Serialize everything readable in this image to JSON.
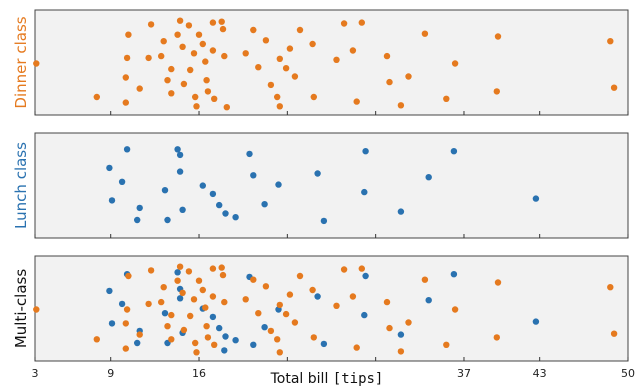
{
  "chart_data": {
    "type": "scatter",
    "xlabel_prefix": "Total bill ",
    "xlabel_code": "[tips]",
    "xlim": [
      3,
      50
    ],
    "xticks": [
      3,
      9,
      16,
      23,
      30,
      37,
      43,
      50
    ],
    "xtick_labels": [
      "3",
      "9",
      "16",
      "",
      "",
      "37",
      "43",
      "50"
    ],
    "grid": false,
    "legend": "none",
    "colors": {
      "dinner": "#e57a1f",
      "lunch": "#2a72b0"
    },
    "panels": [
      {
        "label": "Dinner class",
        "label_color": "#e57a1f",
        "series": [
          {
            "name": "Dinner",
            "color": "#e57a1f",
            "points": [
              [
                3.1,
                0.5
              ],
              [
                7.9,
                0.14
              ],
              [
                10.4,
                0.81
              ],
              [
                10.3,
                0.56
              ],
              [
                10.2,
                0.35
              ],
              [
                10.2,
                0.08
              ],
              [
                11.3,
                0.23
              ],
              [
                12.0,
                0.56
              ],
              [
                12.2,
                0.92
              ],
              [
                13.0,
                0.58
              ],
              [
                13.2,
                0.74
              ],
              [
                13.5,
                0.32
              ],
              [
                13.8,
                0.44
              ],
              [
                13.8,
                0.18
              ],
              [
                14.3,
                0.81
              ],
              [
                14.5,
                0.96
              ],
              [
                14.7,
                0.68
              ],
              [
                14.8,
                0.28
              ],
              [
                15.2,
                0.91
              ],
              [
                15.3,
                0.43
              ],
              [
                15.6,
                0.61
              ],
              [
                15.7,
                0.14
              ],
              [
                15.8,
                0.04
              ],
              [
                16.0,
                0.81
              ],
              [
                16.3,
                0.71
              ],
              [
                16.5,
                0.52
              ],
              [
                16.6,
                0.32
              ],
              [
                16.7,
                0.2
              ],
              [
                17.1,
                0.94
              ],
              [
                17.1,
                0.64
              ],
              [
                17.2,
                0.12
              ],
              [
                17.8,
                0.95
              ],
              [
                17.9,
                0.87
              ],
              [
                18.0,
                0.58
              ],
              [
                18.2,
                0.03
              ],
              [
                19.7,
                0.61
              ],
              [
                20.3,
                0.86
              ],
              [
                20.7,
                0.46
              ],
              [
                21.3,
                0.75
              ],
              [
                21.7,
                0.27
              ],
              [
                22.2,
                0.14
              ],
              [
                22.4,
                0.04
              ],
              [
                22.4,
                0.55
              ],
              [
                22.9,
                0.45
              ],
              [
                23.2,
                0.66
              ],
              [
                23.6,
                0.36
              ],
              [
                24.0,
                0.86
              ],
              [
                25.0,
                0.71
              ],
              [
                25.1,
                0.14
              ],
              [
                26.9,
                0.54
              ],
              [
                27.5,
                0.93
              ],
              [
                28.2,
                0.64
              ],
              [
                28.5,
                0.09
              ],
              [
                28.9,
                0.94
              ],
              [
                30.9,
                0.58
              ],
              [
                31.1,
                0.3
              ],
              [
                32.0,
                0.05
              ],
              [
                32.6,
                0.36
              ],
              [
                33.9,
                0.82
              ],
              [
                35.6,
                0.12
              ],
              [
                36.3,
                0.5
              ],
              [
                39.7,
                0.79
              ],
              [
                39.6,
                0.2
              ],
              [
                48.6,
                0.74
              ],
              [
                48.9,
                0.24
              ]
            ]
          }
        ]
      },
      {
        "label": "Lunch class",
        "label_color": "#2a72b0",
        "series": [
          {
            "name": "Lunch",
            "color": "#2a72b0",
            "points": [
              [
                10.3,
                0.9
              ],
              [
                8.9,
                0.7
              ],
              [
                9.1,
                0.35
              ],
              [
                9.9,
                0.55
              ],
              [
                11.3,
                0.27
              ],
              [
                11.1,
                0.14
              ],
              [
                13.3,
                0.46
              ],
              [
                13.5,
                0.14
              ],
              [
                14.3,
                0.9
              ],
              [
                14.5,
                0.84
              ],
              [
                14.5,
                0.66
              ],
              [
                14.7,
                0.25
              ],
              [
                16.3,
                0.51
              ],
              [
                17.1,
                0.42
              ],
              [
                17.6,
                0.3
              ],
              [
                18.1,
                0.21
              ],
              [
                18.9,
                0.17
              ],
              [
                20.0,
                0.85
              ],
              [
                20.3,
                0.62
              ],
              [
                21.2,
                0.31
              ],
              [
                22.3,
                0.52
              ],
              [
                25.4,
                0.64
              ],
              [
                25.9,
                0.13
              ],
              [
                29.2,
                0.88
              ],
              [
                29.1,
                0.44
              ],
              [
                32.0,
                0.23
              ],
              [
                34.2,
                0.6
              ],
              [
                36.2,
                0.88
              ],
              [
                42.7,
                0.37
              ]
            ]
          }
        ]
      },
      {
        "label": "Multi-class",
        "label_color": "#111111",
        "series": [
          {
            "name": "Lunch",
            "color": "#2a72b0",
            "points": [
              [
                10.3,
                0.88
              ],
              [
                8.9,
                0.7
              ],
              [
                9.1,
                0.35
              ],
              [
                9.9,
                0.56
              ],
              [
                11.3,
                0.27
              ],
              [
                11.1,
                0.14
              ],
              [
                13.3,
                0.46
              ],
              [
                13.5,
                0.14
              ],
              [
                14.3,
                0.9
              ],
              [
                14.5,
                0.72
              ],
              [
                14.5,
                0.62
              ],
              [
                14.7,
                0.25
              ],
              [
                16.3,
                0.51
              ],
              [
                17.1,
                0.42
              ],
              [
                17.6,
                0.3
              ],
              [
                18.1,
                0.21
              ],
              [
                18.0,
                0.06
              ],
              [
                18.9,
                0.17
              ],
              [
                20.0,
                0.85
              ],
              [
                20.3,
                0.12
              ],
              [
                21.2,
                0.31
              ],
              [
                22.3,
                0.5
              ],
              [
                25.4,
                0.64
              ],
              [
                25.9,
                0.13
              ],
              [
                29.2,
                0.86
              ],
              [
                29.1,
                0.44
              ],
              [
                32.0,
                0.23
              ],
              [
                34.2,
                0.6
              ],
              [
                36.2,
                0.88
              ],
              [
                42.7,
                0.37
              ]
            ]
          },
          {
            "name": "Dinner",
            "color": "#e57a1f",
            "points": [
              [
                3.1,
                0.5
              ],
              [
                7.9,
                0.18
              ],
              [
                10.4,
                0.86
              ],
              [
                10.3,
                0.5
              ],
              [
                10.2,
                0.35
              ],
              [
                10.2,
                0.08
              ],
              [
                11.3,
                0.23
              ],
              [
                12.0,
                0.56
              ],
              [
                12.2,
                0.92
              ],
              [
                13.0,
                0.58
              ],
              [
                13.2,
                0.74
              ],
              [
                13.5,
                0.32
              ],
              [
                13.8,
                0.44
              ],
              [
                13.8,
                0.18
              ],
              [
                14.3,
                0.81
              ],
              [
                14.5,
                0.96
              ],
              [
                14.7,
                0.68
              ],
              [
                14.8,
                0.28
              ],
              [
                15.2,
                0.91
              ],
              [
                15.3,
                0.43
              ],
              [
                15.6,
                0.61
              ],
              [
                15.7,
                0.14
              ],
              [
                15.8,
                0.04
              ],
              [
                16.0,
                0.81
              ],
              [
                16.3,
                0.71
              ],
              [
                16.5,
                0.52
              ],
              [
                16.6,
                0.32
              ],
              [
                16.7,
                0.2
              ],
              [
                17.1,
                0.94
              ],
              [
                17.1,
                0.64
              ],
              [
                17.2,
                0.12
              ],
              [
                17.8,
                0.95
              ],
              [
                17.9,
                0.87
              ],
              [
                18.0,
                0.58
              ],
              [
                19.7,
                0.61
              ],
              [
                20.3,
                0.82
              ],
              [
                20.7,
                0.46
              ],
              [
                21.3,
                0.75
              ],
              [
                21.7,
                0.27
              ],
              [
                22.2,
                0.18
              ],
              [
                22.4,
                0.04
              ],
              [
                22.4,
                0.55
              ],
              [
                22.9,
                0.45
              ],
              [
                23.2,
                0.66
              ],
              [
                23.6,
                0.36
              ],
              [
                24.0,
                0.86
              ],
              [
                25.0,
                0.71
              ],
              [
                25.1,
                0.2
              ],
              [
                26.9,
                0.54
              ],
              [
                27.5,
                0.93
              ],
              [
                28.2,
                0.64
              ],
              [
                28.5,
                0.09
              ],
              [
                28.9,
                0.94
              ],
              [
                30.9,
                0.58
              ],
              [
                31.1,
                0.3
              ],
              [
                32.0,
                0.05
              ],
              [
                32.6,
                0.36
              ],
              [
                33.9,
                0.82
              ],
              [
                35.6,
                0.12
              ],
              [
                36.3,
                0.5
              ],
              [
                39.7,
                0.79
              ],
              [
                39.6,
                0.2
              ],
              [
                48.6,
                0.74
              ],
              [
                48.9,
                0.24
              ]
            ]
          }
        ]
      }
    ]
  }
}
